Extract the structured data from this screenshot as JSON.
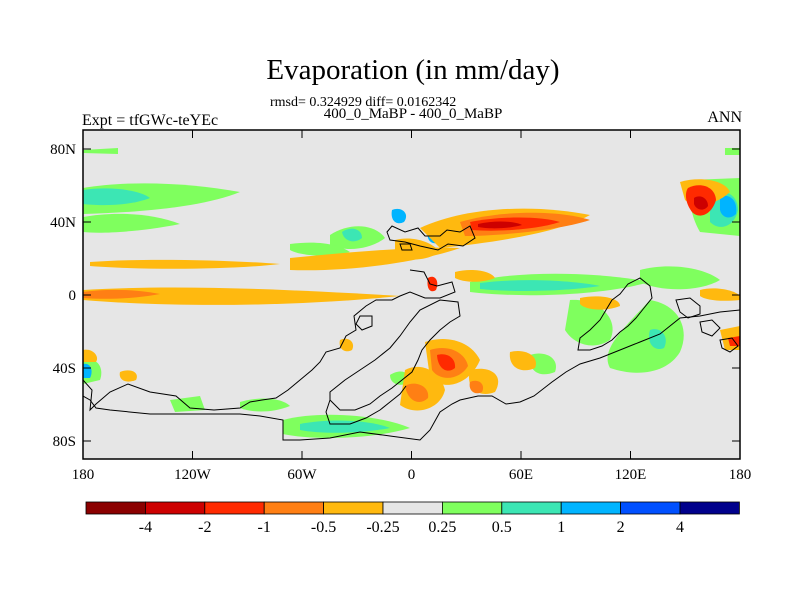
{
  "figure": {
    "title": "Evaporation (in mm/day)",
    "stats": "rmsd= 0.324929 diff= 0.0162342",
    "subtitle": "400_0_MaBP - 400_0_MaBP",
    "left_header": "Expt = tfGWc-teYEc",
    "right_header": "ANN"
  },
  "axes": {
    "lat_ticks": [
      "80N",
      "40N",
      "0",
      "40S",
      "80S"
    ],
    "lon_ticks": [
      "180",
      "120W",
      "60W",
      "0",
      "60E",
      "120E",
      "180"
    ]
  },
  "colorbar": {
    "colors": [
      "#8b0000",
      "#cd0000",
      "#ff2a00",
      "#ff7f14",
      "#ffb90f",
      "#e6e6e6",
      "#7fff5e",
      "#3ce6b4",
      "#00b4ff",
      "#0050ff",
      "#00008c"
    ],
    "labels": [
      "-4",
      "-2",
      "-1",
      "-0.5",
      "-0.25",
      "0.25",
      "0.5",
      "1",
      "2",
      "4"
    ]
  },
  "colors": {
    "background_field": "#e6e6e6",
    "land_outline": "#000000"
  }
}
